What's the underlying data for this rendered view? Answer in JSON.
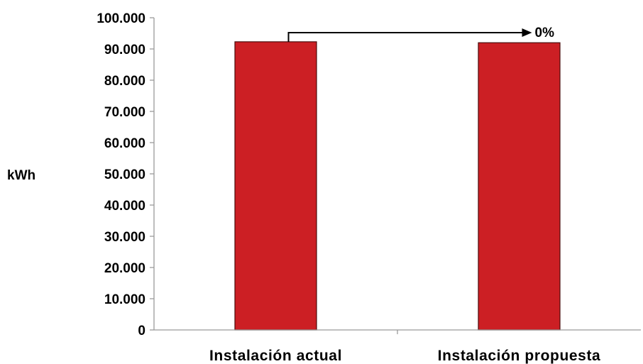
{
  "chart_data": {
    "type": "bar",
    "title": "",
    "xlabel": "",
    "ylabel": "kWh",
    "ylim": [
      0,
      100000
    ],
    "yticks": [
      {
        "value": 0,
        "label": "0"
      },
      {
        "value": 10000,
        "label": "10.000"
      },
      {
        "value": 20000,
        "label": "20.000"
      },
      {
        "value": 30000,
        "label": "30.000"
      },
      {
        "value": 40000,
        "label": "40.000"
      },
      {
        "value": 50000,
        "label": "50.000"
      },
      {
        "value": 60000,
        "label": "60.000"
      },
      {
        "value": 70000,
        "label": "70.000"
      },
      {
        "value": 80000,
        "label": "80.000"
      },
      {
        "value": 90000,
        "label": "90.000"
      },
      {
        "value": 100000,
        "label": "100.000"
      }
    ],
    "categories": [
      "Instalación actual",
      "Instalación propuesta"
    ],
    "values": [
      92300,
      92000
    ],
    "annotation": {
      "text": "0%",
      "from": 0,
      "to": 1
    },
    "grid": false,
    "legend": "none",
    "colors": {
      "bar": "#cc1f24",
      "bar_edge": "#4a0c0c",
      "axis": "#9a9a9a",
      "text": "#000000"
    }
  }
}
